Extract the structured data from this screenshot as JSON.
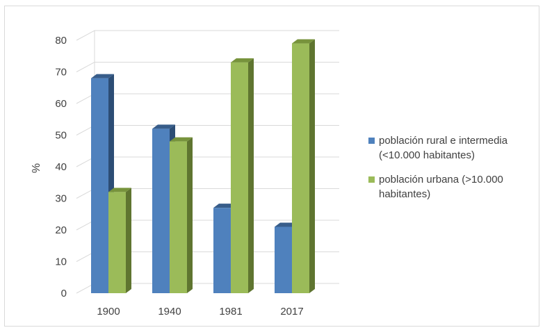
{
  "chart_data": {
    "type": "bar",
    "categories": [
      "1900",
      "1940",
      "1981",
      "2017"
    ],
    "series": [
      {
        "name": "población rural e intermedia (<10.000 habitantes)",
        "values": [
          68,
          52,
          27,
          21
        ],
        "color": "#4f81bd",
        "top_color": "#385d8a",
        "side_color": "#2c4d75"
      },
      {
        "name": "población urbana (>10.000 habitantes)",
        "values": [
          32,
          48,
          73,
          79
        ],
        "color": "#9bbb59",
        "top_color": "#77933c",
        "side_color": "#5f7530"
      }
    ],
    "ylabel": "%",
    "xlabel": "",
    "ylim": [
      0,
      80
    ],
    "yticks": [
      "0",
      "10",
      "20",
      "30",
      "40",
      "50",
      "60",
      "70",
      "80"
    ],
    "grid": true,
    "legend_position": "right",
    "style": "3d-clustered-column"
  }
}
